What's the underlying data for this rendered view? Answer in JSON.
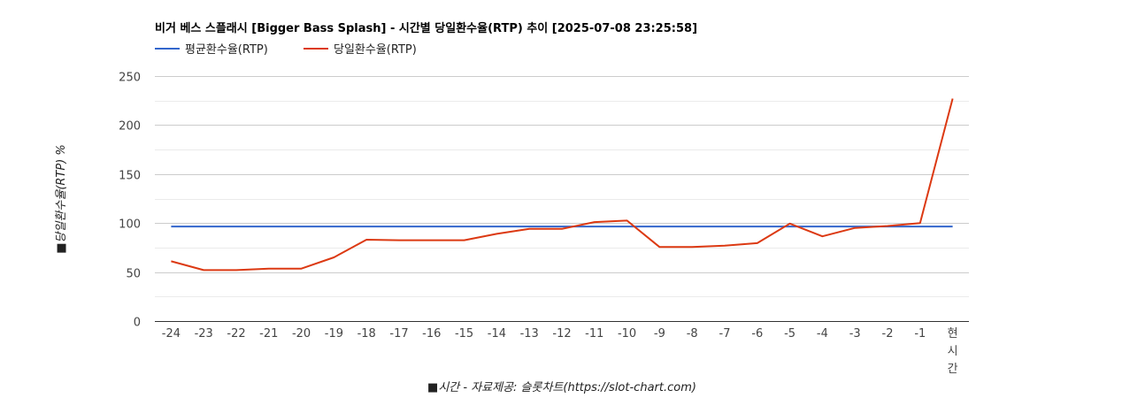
{
  "chart_data": {
    "type": "line",
    "title": "비거 베스 스플래시 [Bigger Bass Splash] - 시간별 당일환수율(RTP) 추이 [2025-07-08 23:25:58]",
    "xlabel": "■시간 - 자료제공: 슬롯차트(https://slot-chart.com)",
    "ylabel": "■당일환수율(RTP) %",
    "ylim": [
      0,
      250
    ],
    "yticks": [
      "0",
      "50",
      "100",
      "150",
      "200",
      "250"
    ],
    "categories": [
      "-24",
      "-23",
      "-22",
      "-21",
      "-20",
      "-19",
      "-18",
      "-17",
      "-16",
      "-15",
      "-14",
      "-13",
      "-12",
      "-11",
      "-10",
      "-9",
      "-8",
      "-7",
      "-6",
      "-5",
      "-4",
      "-3",
      "-2",
      "-1",
      "현시간"
    ],
    "legend_position": "top-left",
    "grid": true,
    "series": [
      {
        "name": "평균환수율(RTP)",
        "color": "#3366cc",
        "values": [
          96.5,
          96.5,
          96.5,
          96.5,
          96.5,
          96.5,
          96.5,
          96.5,
          96.5,
          96.5,
          96.5,
          96.5,
          96.5,
          96.5,
          96.5,
          96.5,
          96.5,
          96.5,
          96.5,
          96.5,
          96.5,
          96.5,
          96.5,
          96.5,
          96.5
        ]
      },
      {
        "name": "당일환수율(RTP)",
        "color": "#dc3912",
        "values": [
          61,
          52,
          52,
          53.5,
          53.5,
          65,
          83,
          82.5,
          82.5,
          82.5,
          89,
          94,
          94,
          101,
          102.5,
          75.5,
          75.5,
          77,
          79.5,
          99.5,
          86.5,
          95,
          97,
          100,
          227
        ]
      }
    ]
  }
}
